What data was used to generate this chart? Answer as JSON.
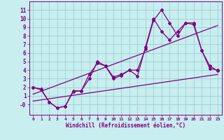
{
  "xlabel": "Windchill (Refroidissement éolien,°C)",
  "bg_color": "#c8eef0",
  "line_color": "#800080",
  "grid_color": "#9dcfcf",
  "xlim": [
    -0.5,
    23.5
  ],
  "ylim": [
    -1.2,
    12.0
  ],
  "xticks": [
    0,
    1,
    2,
    3,
    4,
    5,
    6,
    7,
    8,
    9,
    10,
    11,
    12,
    13,
    14,
    15,
    16,
    17,
    18,
    19,
    20,
    21,
    22,
    23
  ],
  "yticks": [
    0,
    1,
    2,
    3,
    4,
    5,
    6,
    7,
    8,
    9,
    10,
    11
  ],
  "ytick_labels": [
    "-0",
    "1",
    "2",
    "3",
    "4",
    "5",
    "6",
    "7",
    "8",
    "9",
    "10",
    "11"
  ],
  "line1_x": [
    0,
    1,
    2,
    3,
    4,
    5,
    6,
    7,
    8,
    9,
    10,
    11,
    12,
    13,
    14,
    15,
    16,
    17,
    18,
    19,
    20,
    21,
    22,
    23
  ],
  "line1_y": [
    2.0,
    1.7,
    0.3,
    -0.4,
    -0.2,
    1.5,
    1.6,
    3.5,
    4.8,
    4.5,
    3.0,
    3.4,
    4.0,
    4.0,
    6.5,
    9.8,
    11.0,
    9.5,
    8.0,
    9.5,
    9.3,
    6.3,
    4.2,
    4.0
  ],
  "line2_x": [
    0,
    1,
    2,
    3,
    4,
    5,
    6,
    7,
    8,
    9,
    10,
    11,
    12,
    13,
    14,
    15,
    16,
    17,
    18,
    19,
    20,
    21,
    22,
    23
  ],
  "line2_y": [
    2.0,
    1.8,
    0.3,
    -0.4,
    -0.2,
    1.6,
    1.6,
    3.0,
    5.0,
    4.5,
    3.2,
    3.5,
    4.0,
    3.3,
    6.7,
    10.0,
    8.5,
    7.5,
    8.5,
    9.5,
    9.5,
    6.3,
    4.5,
    3.9
  ],
  "line3_x": [
    0,
    23
  ],
  "line3_y": [
    0.4,
    3.5
  ],
  "line4_x": [
    0,
    23
  ],
  "line4_y": [
    1.2,
    9.2
  ]
}
